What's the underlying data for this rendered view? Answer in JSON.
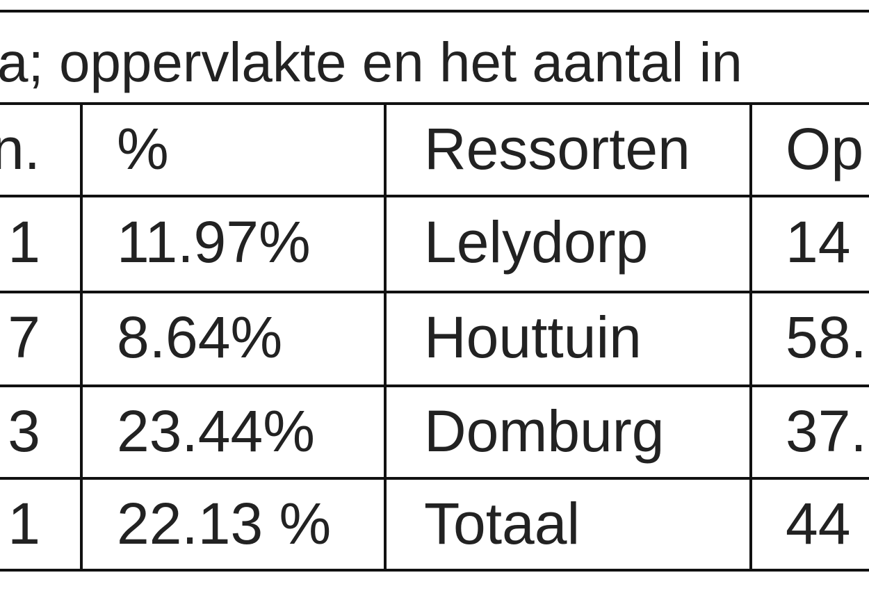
{
  "caption": "a; oppervlakte en het aantal in",
  "table": {
    "rows": [
      [
        "n.",
        "%",
        "Ressorten",
        "Op"
      ],
      [
        "1",
        "11.97%",
        "Lelydorp",
        "14"
      ],
      [
        "7",
        "8.64%",
        "Houttuin",
        "58."
      ],
      [
        "3",
        "23.44%",
        "Domburg",
        "37."
      ],
      [
        "1",
        "22.13 %",
        "Totaal",
        "44"
      ]
    ]
  }
}
